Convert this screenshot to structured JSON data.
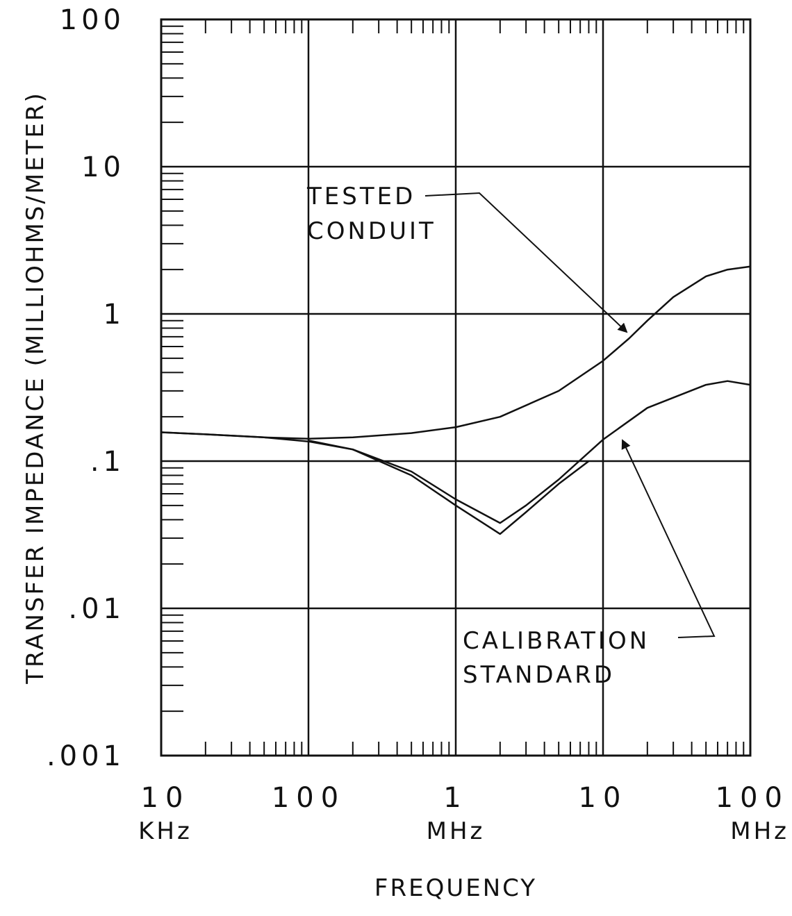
{
  "chart_data": {
    "type": "line",
    "title": "",
    "xlabel": "FREQUENCY",
    "ylabel": "TRANSFER IMPEDANCE (MILLIOHMS/METER)",
    "x_scale": "log",
    "y_scale": "log",
    "x_unit": "Hz",
    "xlim": [
      10000,
      100000000
    ],
    "ylim": [
      0.001,
      100
    ],
    "grid": true,
    "y_ticks": [
      {
        "value": 100,
        "label": "100"
      },
      {
        "value": 10,
        "label": "10"
      },
      {
        "value": 1,
        "label": "1"
      },
      {
        "value": 0.1,
        "label": ".1"
      },
      {
        "value": 0.01,
        "label": ".01"
      },
      {
        "value": 0.001,
        "label": ".001"
      }
    ],
    "x_ticks": [
      {
        "value": 10000,
        "label": "10",
        "unit": "KHz"
      },
      {
        "value": 100000,
        "label": "100",
        "unit": ""
      },
      {
        "value": 1000000,
        "label": "1",
        "unit": "MHz"
      },
      {
        "value": 10000000,
        "label": "10",
        "unit": ""
      },
      {
        "value": 100000000,
        "label": "100",
        "unit": "MHz"
      }
    ],
    "series": [
      {
        "name": "TESTED CONDUIT",
        "x": [
          10000,
          20000,
          50000,
          100000,
          200000,
          500000,
          1000000,
          2000000,
          5000000,
          10000000,
          15000000,
          20000000,
          30000000,
          50000000,
          70000000,
          100000000
        ],
        "y": [
          0.157,
          0.152,
          0.145,
          0.142,
          0.145,
          0.155,
          0.17,
          0.2,
          0.3,
          0.48,
          0.68,
          0.9,
          1.3,
          1.8,
          2.0,
          2.1
        ]
      },
      {
        "name": "CALIBRATION STANDARD",
        "x": [
          10000,
          20000,
          50000,
          100000,
          200000,
          500000,
          1000000,
          2000000,
          3000000,
          5000000,
          10000000,
          20000000,
          50000000,
          70000000,
          100000000
        ],
        "y": [
          0.157,
          0.152,
          0.145,
          0.136,
          0.12,
          0.085,
          0.055,
          0.038,
          0.05,
          0.075,
          0.14,
          0.23,
          0.33,
          0.35,
          0.33
        ]
      },
      {
        "name": "",
        "x": [
          100000,
          200000,
          500000,
          1000000,
          2000000,
          3000000,
          5000000,
          8000000
        ],
        "y": [
          0.138,
          0.12,
          0.08,
          0.05,
          0.032,
          0.045,
          0.07,
          0.1
        ]
      }
    ],
    "annotations": [
      {
        "lines": [
          "TESTED",
          "CONDUIT"
        ]
      },
      {
        "lines": [
          "CALIBRATION",
          "STANDARD"
        ]
      }
    ]
  }
}
